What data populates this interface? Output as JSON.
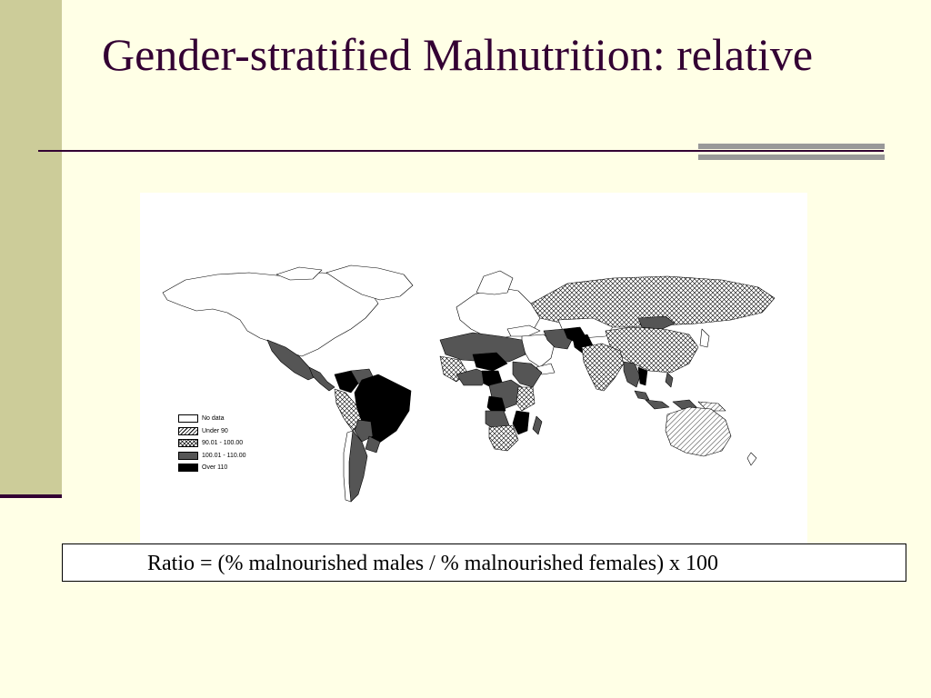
{
  "slide": {
    "title": "Gender-stratified Malnutrition: relative",
    "caption": "Ratio = (% malnourished males / % malnourished females) x 100"
  },
  "legend": {
    "items": [
      {
        "key": "no-data",
        "label": "No data",
        "fill": "#ffffff"
      },
      {
        "key": "under-90",
        "label": "Under 90",
        "fill": "hatch-diagonal"
      },
      {
        "key": "90-100",
        "label": "90.01 - 100.00",
        "fill": "hatch-cross"
      },
      {
        "key": "100-110",
        "label": "100.01 - 110.00",
        "fill": "#555555"
      },
      {
        "key": "over-110",
        "label": "Over 110",
        "fill": "#000000"
      }
    ]
  },
  "colors": {
    "background": "#ffffe6",
    "accent_bar": "#cccc99",
    "title_color": "#330033",
    "rule_accent": "#999999"
  }
}
